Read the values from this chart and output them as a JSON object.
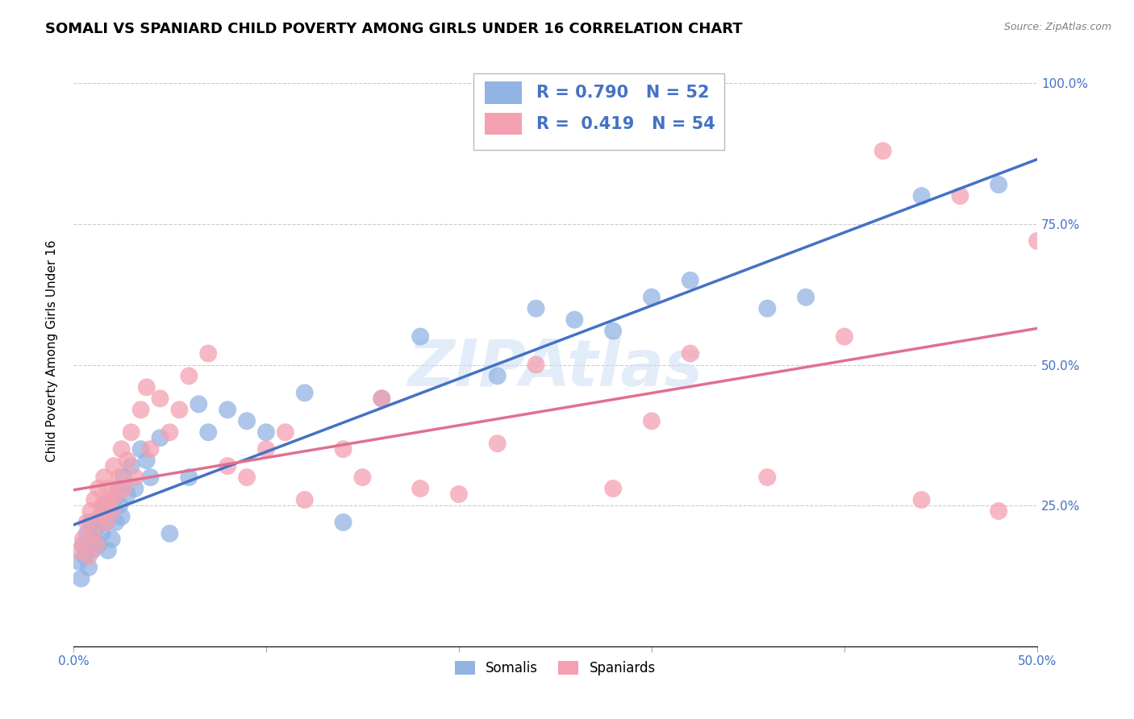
{
  "title": "SOMALI VS SPANIARD CHILD POVERTY AMONG GIRLS UNDER 16 CORRELATION CHART",
  "source": "Source: ZipAtlas.com",
  "ylabel": "Child Poverty Among Girls Under 16",
  "xlim": [
    0.0,
    0.5
  ],
  "ylim": [
    0.0,
    1.05
  ],
  "xticks": [
    0.0,
    0.1,
    0.2,
    0.3,
    0.4,
    0.5
  ],
  "xticklabels": [
    "0.0%",
    "",
    "",
    "",
    "",
    "50.0%"
  ],
  "yticks": [
    0.0,
    0.25,
    0.5,
    0.75,
    1.0
  ],
  "yticklabels_right": [
    "",
    "25.0%",
    "50.0%",
    "75.0%",
    "100.0%"
  ],
  "watermark": "ZIPAtlas",
  "legend_somali_r": "0.790",
  "legend_somali_n": "52",
  "legend_spaniard_r": "0.419",
  "legend_spaniard_n": "54",
  "somali_color": "#92b4e3",
  "spaniard_color": "#f4a0b0",
  "somali_line_color": "#4472c4",
  "spaniard_line_color": "#e07090",
  "background_color": "#ffffff",
  "grid_color": "#cccccc",
  "somali_x": [
    0.003,
    0.004,
    0.005,
    0.006,
    0.007,
    0.008,
    0.009,
    0.01,
    0.011,
    0.012,
    0.013,
    0.014,
    0.015,
    0.016,
    0.017,
    0.018,
    0.019,
    0.02,
    0.021,
    0.022,
    0.023,
    0.024,
    0.025,
    0.026,
    0.028,
    0.03,
    0.032,
    0.035,
    0.038,
    0.04,
    0.045,
    0.05,
    0.06,
    0.065,
    0.07,
    0.08,
    0.09,
    0.1,
    0.12,
    0.14,
    0.16,
    0.18,
    0.22,
    0.24,
    0.26,
    0.28,
    0.3,
    0.32,
    0.36,
    0.38,
    0.44,
    0.48
  ],
  "somali_y": [
    0.15,
    0.12,
    0.18,
    0.16,
    0.2,
    0.14,
    0.22,
    0.17,
    0.19,
    0.21,
    0.18,
    0.23,
    0.2,
    0.25,
    0.22,
    0.17,
    0.24,
    0.19,
    0.26,
    0.22,
    0.28,
    0.25,
    0.23,
    0.3,
    0.27,
    0.32,
    0.28,
    0.35,
    0.33,
    0.3,
    0.37,
    0.2,
    0.3,
    0.43,
    0.38,
    0.42,
    0.4,
    0.38,
    0.45,
    0.22,
    0.44,
    0.55,
    0.48,
    0.6,
    0.58,
    0.56,
    0.62,
    0.65,
    0.6,
    0.62,
    0.8,
    0.82
  ],
  "spaniard_x": [
    0.003,
    0.005,
    0.007,
    0.008,
    0.009,
    0.01,
    0.011,
    0.012,
    0.013,
    0.014,
    0.015,
    0.016,
    0.017,
    0.018,
    0.019,
    0.02,
    0.021,
    0.022,
    0.024,
    0.025,
    0.026,
    0.028,
    0.03,
    0.032,
    0.035,
    0.038,
    0.04,
    0.045,
    0.05,
    0.055,
    0.06,
    0.07,
    0.08,
    0.09,
    0.1,
    0.11,
    0.12,
    0.14,
    0.15,
    0.16,
    0.18,
    0.2,
    0.22,
    0.24,
    0.28,
    0.3,
    0.32,
    0.36,
    0.4,
    0.42,
    0.44,
    0.46,
    0.48,
    0.5
  ],
  "spaniard_y": [
    0.17,
    0.19,
    0.22,
    0.16,
    0.24,
    0.2,
    0.26,
    0.18,
    0.28,
    0.23,
    0.25,
    0.3,
    0.22,
    0.28,
    0.26,
    0.24,
    0.32,
    0.27,
    0.3,
    0.35,
    0.28,
    0.33,
    0.38,
    0.3,
    0.42,
    0.46,
    0.35,
    0.44,
    0.38,
    0.42,
    0.48,
    0.52,
    0.32,
    0.3,
    0.35,
    0.38,
    0.26,
    0.35,
    0.3,
    0.44,
    0.28,
    0.27,
    0.36,
    0.5,
    0.28,
    0.4,
    0.52,
    0.3,
    0.55,
    0.88,
    0.26,
    0.8,
    0.24,
    0.72
  ],
  "title_fontsize": 13,
  "label_fontsize": 11,
  "tick_fontsize": 11,
  "legend_fontsize": 14
}
